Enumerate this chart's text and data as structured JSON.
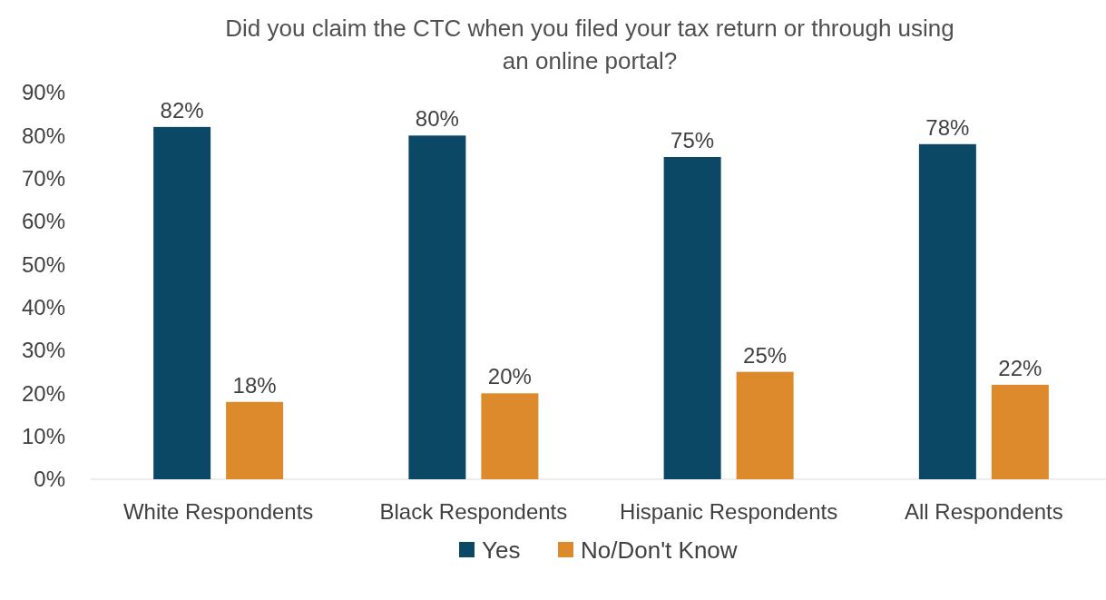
{
  "chart_data": {
    "type": "bar",
    "title": "Did you claim the CTC when you filed your tax return or through using an online portal?",
    "categories": [
      "White Respondents",
      "Black Respondents",
      "Hispanic Respondents",
      "All Respondents"
    ],
    "series": [
      {
        "name": "Yes",
        "color": "#0b4866",
        "values": [
          82,
          80,
          75,
          78
        ]
      },
      {
        "name": "No/Don't Know",
        "color": "#dc8a2b",
        "values": [
          18,
          20,
          25,
          22
        ]
      }
    ],
    "ylim": [
      0,
      90
    ],
    "yticks": [
      {
        "value": 0,
        "label": "0%"
      },
      {
        "value": 10,
        "label": "10%"
      },
      {
        "value": 20,
        "label": "20%"
      },
      {
        "value": 30,
        "label": "30%"
      },
      {
        "value": 40,
        "label": "40%"
      },
      {
        "value": 50,
        "label": "50%"
      },
      {
        "value": 60,
        "label": "60%"
      },
      {
        "value": 70,
        "label": "70%"
      },
      {
        "value": 80,
        "label": "80%"
      },
      {
        "value": 90,
        "label": "90%"
      }
    ],
    "value_labels": [
      [
        "82%",
        "80%",
        "75%",
        "78%"
      ],
      [
        "18%",
        "20%",
        "25%",
        "22%"
      ]
    ],
    "legend": "bottom",
    "grid": false
  }
}
